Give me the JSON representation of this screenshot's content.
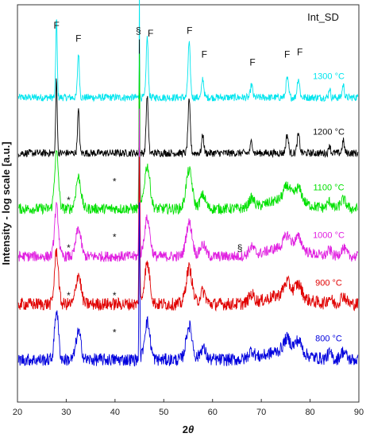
{
  "chart_data": {
    "type": "line",
    "panel_label": "Int_SD",
    "xlabel": "2θ",
    "ylabel": "Intensity - log scale [a.u.]",
    "xlim": [
      20,
      90
    ],
    "x_ticks": [
      20,
      30,
      40,
      50,
      60,
      70,
      80,
      90
    ],
    "grid": false,
    "legend": "labels placed beside each trace on the right",
    "y_ticks_shown": false,
    "series": [
      {
        "name": "1300 °C",
        "color": "#00e5ee",
        "baseline": 5.45,
        "noise": 0.07,
        "peak_scale": 1.2,
        "sharp": true
      },
      {
        "name": "1200 °C",
        "color": "#000000",
        "baseline": 4.4,
        "noise": 0.07,
        "peak_scale": 1.15,
        "sharp": true
      },
      {
        "name": "1100 °C",
        "color": "#00e000",
        "baseline": 3.35,
        "noise": 0.1,
        "peak_scale": 0.85,
        "sharp": false
      },
      {
        "name": "1000 °C",
        "color": "#e020e0",
        "baseline": 2.45,
        "noise": 0.1,
        "peak_scale": 0.75,
        "sharp": false
      },
      {
        "name": "900 °C",
        "color": "#e00000",
        "baseline": 1.55,
        "noise": 0.12,
        "peak_scale": 0.8,
        "sharp": false
      },
      {
        "name": "800 °C",
        "color": "#0000dd",
        "baseline": 0.5,
        "noise": 0.12,
        "peak_scale": 0.75,
        "sharp": false
      }
    ],
    "peaks": [
      {
        "x": 28.0,
        "height": 1.25,
        "width": 0.35
      },
      {
        "x": 32.5,
        "height": 0.7,
        "width": 0.45
      },
      {
        "x": 45.0,
        "height": 2.2,
        "width": 0.08
      },
      {
        "x": 46.6,
        "height": 0.95,
        "width": 0.5
      },
      {
        "x": 55.2,
        "height": 0.85,
        "width": 0.55
      },
      {
        "x": 58.0,
        "height": 0.3,
        "width": 0.5
      },
      {
        "x": 68.0,
        "height": 0.2,
        "width": 0.5
      },
      {
        "x": 75.3,
        "height": 0.3,
        "width": 0.6
      },
      {
        "x": 77.6,
        "height": 0.3,
        "width": 0.6
      },
      {
        "x": 84.0,
        "height": 0.15,
        "width": 0.4
      },
      {
        "x": 86.8,
        "height": 0.2,
        "width": 0.5
      }
    ],
    "annotations": [
      {
        "text": "F",
        "x": 28.0,
        "y": 6.75
      },
      {
        "text": "F",
        "x": 32.5,
        "y": 6.5
      },
      {
        "text": "§",
        "x": 44.8,
        "y": 6.65
      },
      {
        "text": "F",
        "x": 47.3,
        "y": 6.6
      },
      {
        "text": "F",
        "x": 55.3,
        "y": 6.65
      },
      {
        "text": "F",
        "x": 58.3,
        "y": 6.2
      },
      {
        "text": "F",
        "x": 68.2,
        "y": 6.05
      },
      {
        "text": "F",
        "x": 75.3,
        "y": 6.2
      },
      {
        "text": "F",
        "x": 77.9,
        "y": 6.25
      },
      {
        "text": "*",
        "x": 30.5,
        "y": 3.45
      },
      {
        "text": "*",
        "x": 39.9,
        "y": 3.8
      },
      {
        "text": "*",
        "x": 30.5,
        "y": 2.55
      },
      {
        "text": "*",
        "x": 39.9,
        "y": 2.75
      },
      {
        "text": "*",
        "x": 30.5,
        "y": 1.65
      },
      {
        "text": "*",
        "x": 39.9,
        "y": 1.65
      },
      {
        "text": "*",
        "x": 39.9,
        "y": 0.95
      },
      {
        "text": "§",
        "x": 65.6,
        "y": 2.55
      }
    ]
  }
}
